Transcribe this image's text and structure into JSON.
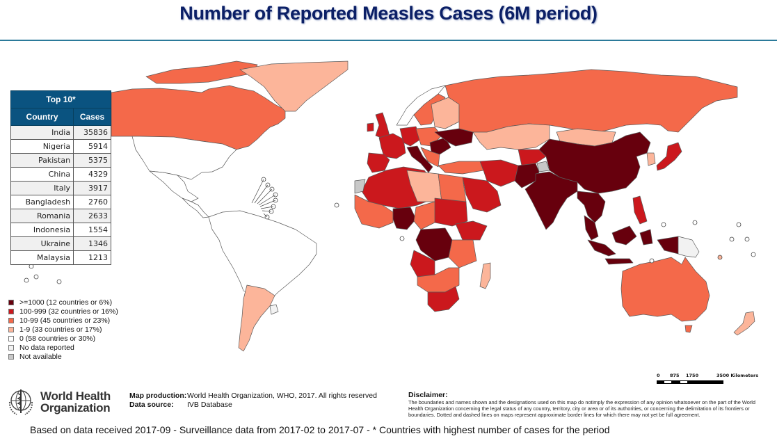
{
  "title": "Number of Reported Measles Cases (6M period)",
  "colors": {
    "title": "#0b1f66",
    "rule": "#2b7a9a",
    "table_header": "#0a5380",
    "class_1000_plus": "#67000d",
    "class_100_999": "#cb181d",
    "class_10_99": "#f4694a",
    "class_1_9": "#fcb59a",
    "class_0": "#ffffff",
    "class_no_data": "#f2f2f2",
    "class_not_available": "#c8c8c8"
  },
  "top10": {
    "title": "Top 10*",
    "col_country": "Country",
    "col_cases": "Cases",
    "rows": [
      {
        "country": "India",
        "cases": "35836"
      },
      {
        "country": "Nigeria",
        "cases": "5914"
      },
      {
        "country": "Pakistan",
        "cases": "5375"
      },
      {
        "country": "China",
        "cases": "4329"
      },
      {
        "country": "Italy",
        "cases": "3917"
      },
      {
        "country": "Bangladesh",
        "cases": "2760"
      },
      {
        "country": "Romania",
        "cases": "2633"
      },
      {
        "country": "Indonesia",
        "cases": "1554"
      },
      {
        "country": "Ukraine",
        "cases": "1346"
      },
      {
        "country": "Malaysia",
        "cases": "1213"
      }
    ]
  },
  "legend": [
    {
      "label": ">=1000 (12 countries or 6%)",
      "class": "class_1000_plus"
    },
    {
      "label": "100-999 (32 countries or 16%)",
      "class": "class_100_999"
    },
    {
      "label": "10-99 (45 countries or 23%)",
      "class": "class_10_99"
    },
    {
      "label": "1-9 (33 countries or 17%)",
      "class": "class_1_9"
    },
    {
      "label": "0 (58 countries or 30%)",
      "class": "class_0"
    },
    {
      "label": "No data reported",
      "class": "class_no_data"
    },
    {
      "label": "Not available",
      "class": "class_not_available"
    }
  ],
  "regions": [
    {
      "name": "Canada",
      "class": "class_10_99"
    },
    {
      "name": "Greenland",
      "class": "class_1_9"
    },
    {
      "name": "United States",
      "class": "class_0"
    },
    {
      "name": "Mexico",
      "class": "class_0"
    },
    {
      "name": "Central America",
      "class": "class_0"
    },
    {
      "name": "South America (north)",
      "class": "class_0"
    },
    {
      "name": "Argentina",
      "class": "class_1_9"
    },
    {
      "name": "Uruguay",
      "class": "class_no_data"
    },
    {
      "name": "Russia",
      "class": "class_10_99"
    },
    {
      "name": "Kazakhstan",
      "class": "class_1_9"
    },
    {
      "name": "Mongolia",
      "class": "class_1_9"
    },
    {
      "name": "China",
      "class": "class_1000_plus"
    },
    {
      "name": "India",
      "class": "class_1000_plus"
    },
    {
      "name": "Pakistan",
      "class": "class_1000_plus"
    },
    {
      "name": "Afghanistan",
      "class": "class_100_999"
    },
    {
      "name": "Iran",
      "class": "class_100_999"
    },
    {
      "name": "Saudi Arabia",
      "class": "class_100_999"
    },
    {
      "name": "Turkey",
      "class": "class_10_99"
    },
    {
      "name": "Ukraine",
      "class": "class_1000_plus"
    },
    {
      "name": "Romania",
      "class": "class_1000_plus"
    },
    {
      "name": "Italy",
      "class": "class_1000_plus"
    },
    {
      "name": "France",
      "class": "class_100_999"
    },
    {
      "name": "Spain",
      "class": "class_100_999"
    },
    {
      "name": "United Kingdom",
      "class": "class_100_999"
    },
    {
      "name": "Germany",
      "class": "class_100_999"
    },
    {
      "name": "Scandinavia",
      "class": "class_10_99"
    },
    {
      "name": "Norway",
      "class": "class_0"
    },
    {
      "name": "Baltics/Belarus",
      "class": "class_1_9"
    },
    {
      "name": "North Africa",
      "class": "class_100_999"
    },
    {
      "name": "Libya",
      "class": "class_1_9"
    },
    {
      "name": "Egypt",
      "class": "class_10_99"
    },
    {
      "name": "Western Sahara",
      "class": "class_not_available"
    },
    {
      "name": "Nigeria",
      "class": "class_1000_plus"
    },
    {
      "name": "DR Congo",
      "class": "class_1000_plus"
    },
    {
      "name": "Sudan",
      "class": "class_100_999"
    },
    {
      "name": "Ethiopia",
      "class": "class_100_999"
    },
    {
      "name": "Angola",
      "class": "class_100_999"
    },
    {
      "name": "South Africa",
      "class": "class_100_999"
    },
    {
      "name": "Southern Africa",
      "class": "class_10_99"
    },
    {
      "name": "Madagascar",
      "class": "class_1_9"
    },
    {
      "name": "Japan",
      "class": "class_100_999"
    },
    {
      "name": "Korea",
      "class": "class_1_9"
    },
    {
      "name": "Southeast Asia",
      "class": "class_1000_plus"
    },
    {
      "name": "Indonesia",
      "class": "class_1000_plus"
    },
    {
      "name": "Philippines",
      "class": "class_100_999"
    },
    {
      "name": "Papua New Guinea",
      "class": "class_no_data"
    },
    {
      "name": "Australia",
      "class": "class_10_99"
    },
    {
      "name": "New Zealand",
      "class": "class_1_9"
    },
    {
      "name": "Kashmir",
      "class": "class_not_available"
    }
  ],
  "credits": {
    "map_production_label": "Map production:",
    "map_production_value": "World Health Organization, WHO, 2017. All rights reserved",
    "data_source_label": "Data source:",
    "data_source_value": "IVB Database"
  },
  "who_logo": {
    "line1": "World Health",
    "line2": "Organization"
  },
  "disclaimer": {
    "heading": "Disclaimer:",
    "text": "The boundaries and names shown and the designations used on this map do notimply the expression of any opinion whatsoever on the part of the World Health Organization concerning the legal status of any country, territory, city or area or of its authorities, or concerning the delimitation of its frontiers or boundaries. Dotted and dashed lines on maps represent approximate border lines for which there may not yet be full agreement."
  },
  "scale_bar": {
    "labels": [
      "0",
      "875",
      "1750",
      "3500 Kilometers"
    ]
  },
  "footer": "Based on data received 2017-09 - Surveillance data from 2017-02 to 2017-07 - * Countries with highest number of cases for the period"
}
